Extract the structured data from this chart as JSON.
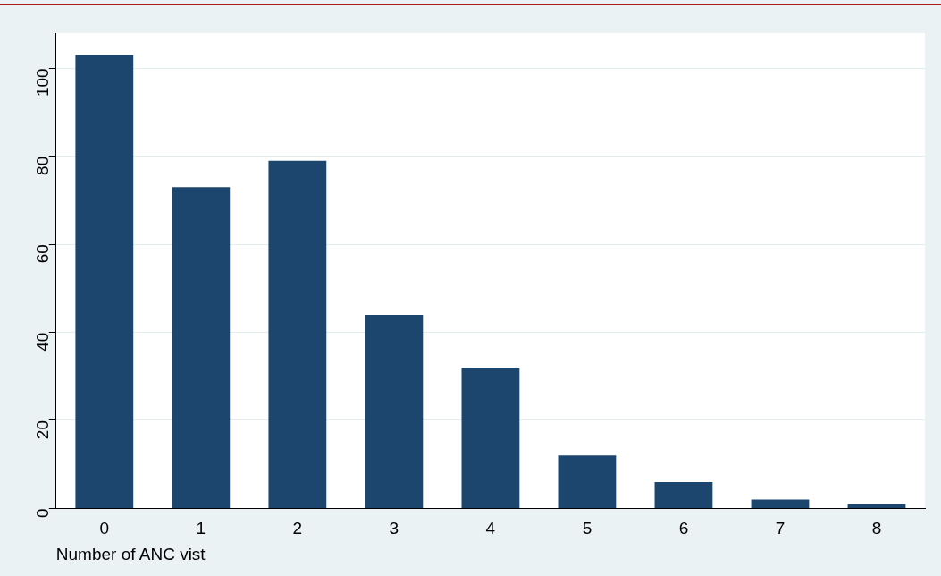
{
  "chart_data": {
    "type": "bar",
    "xlabel": "Number of ANC vist",
    "categories": [
      "0",
      "1",
      "2",
      "3",
      "4",
      "5",
      "6",
      "7",
      "8"
    ],
    "values": [
      103,
      73,
      79,
      44,
      32,
      12,
      6,
      2,
      1
    ],
    "color": "#1c466e",
    "ylim": [
      0,
      108
    ],
    "yticks": [
      0,
      20,
      40,
      60,
      80,
      100
    ],
    "grid": "y",
    "legend": false
  }
}
